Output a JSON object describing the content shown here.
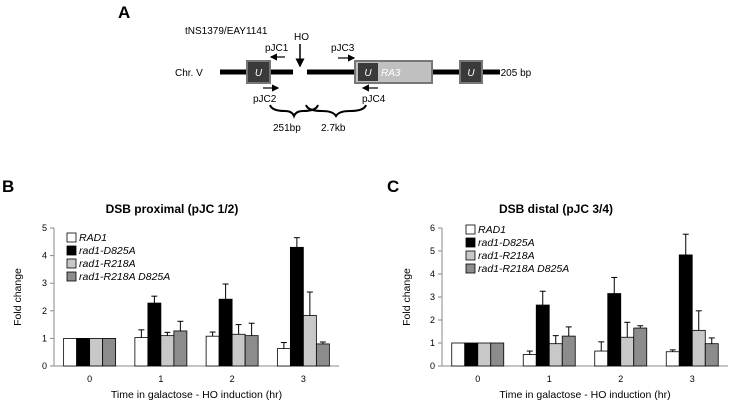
{
  "panels": {
    "a": "A",
    "b": "B",
    "c": "C"
  },
  "diagram": {
    "strain": "tNS1379/EAY1141",
    "chromosome": "Chr. V",
    "ho_label": "HO",
    "primers": [
      "pJC1",
      "pJC2",
      "pJC3",
      "pJC4"
    ],
    "u_label": "U",
    "ra3_label": "RA3",
    "scale_note": "= 205 bp",
    "dist1": "251bp",
    "dist2": "2.7kb"
  },
  "chart_data": [
    {
      "type": "bar",
      "title": "DSB proximal (pJC 1/2)",
      "xlabel": "Time in galactose - HO induction (hr)",
      "ylabel": "Fold change",
      "ylim": [
        0,
        5
      ],
      "yticks": [
        "0",
        "1",
        "2",
        "3",
        "4",
        "5"
      ],
      "categories": [
        "0",
        "1",
        "2",
        "3"
      ],
      "series": [
        {
          "name": "RAD1",
          "color": "#ffffff",
          "values": [
            1.0,
            1.03,
            1.08,
            0.63
          ],
          "errors": [
            0.0,
            0.28,
            0.15,
            0.22
          ]
        },
        {
          "name": "rad1-D825A",
          "color": "#000000",
          "values": [
            1.0,
            2.28,
            2.42,
            4.3
          ],
          "errors": [
            0.0,
            0.25,
            0.55,
            0.35
          ]
        },
        {
          "name": "rad1-R218A",
          "color": "#c8c8c8",
          "values": [
            1.0,
            1.1,
            1.15,
            1.83
          ],
          "errors": [
            0.0,
            0.12,
            0.35,
            0.85
          ]
        },
        {
          "name": "rad1-R218A D825A",
          "color": "#8c8c8c",
          "values": [
            1.0,
            1.27,
            1.1,
            0.8
          ],
          "errors": [
            0.0,
            0.35,
            0.45,
            0.07
          ]
        }
      ]
    },
    {
      "type": "bar",
      "title": "DSB distal (pJC 3/4)",
      "xlabel": "Time in galactose - HO induction (hr)",
      "ylabel": "Fold change",
      "ylim": [
        0,
        6
      ],
      "yticks": [
        "0",
        "1",
        "2",
        "3",
        "4",
        "5",
        "6"
      ],
      "categories": [
        "0",
        "1",
        "2",
        "3"
      ],
      "series": [
        {
          "name": "RAD1",
          "color": "#ffffff",
          "values": [
            1.0,
            0.5,
            0.65,
            0.62
          ],
          "errors": [
            0.0,
            0.15,
            0.4,
            0.08
          ]
        },
        {
          "name": "rad1-D825A",
          "color": "#000000",
          "values": [
            1.0,
            2.65,
            3.15,
            4.83
          ],
          "errors": [
            0.0,
            0.6,
            0.7,
            0.9
          ]
        },
        {
          "name": "rad1-R218A",
          "color": "#c8c8c8",
          "values": [
            1.0,
            0.97,
            1.25,
            1.55
          ],
          "errors": [
            0.0,
            0.35,
            0.65,
            0.85
          ]
        },
        {
          "name": "rad1-R218A D825A",
          "color": "#8c8c8c",
          "values": [
            1.0,
            1.3,
            1.65,
            0.97
          ],
          "errors": [
            0.0,
            0.4,
            0.1,
            0.25
          ]
        }
      ]
    }
  ]
}
